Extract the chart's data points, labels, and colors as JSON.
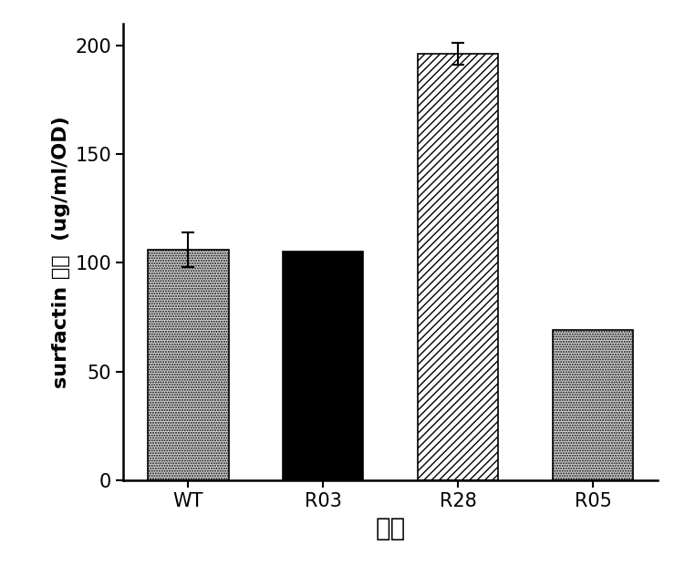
{
  "categories": [
    "WT",
    "R03",
    "R28",
    "R05"
  ],
  "values": [
    106.0,
    105.0,
    196.0,
    69.0
  ],
  "errors": [
    8.0,
    0.0,
    5.0,
    0.0
  ],
  "bar_colors": [
    "#d8d8d8",
    "#000000",
    "#ffffff",
    "#d8d8d8"
  ],
  "hatches": [
    "......",
    "",
    "////",
    "......"
  ],
  "edgecolors": [
    "#000000",
    "#000000",
    "#000000",
    "#000000"
  ],
  "ylabel": "surfactin 产量  (ug/ml/OD)",
  "xlabel": "菌株",
  "ylim": [
    0,
    210
  ],
  "yticks": [
    0,
    50,
    100,
    150,
    200
  ],
  "bar_width": 0.6,
  "label_fontsize": 16,
  "tick_fontsize": 15,
  "xlabel_fontsize": 20,
  "background_color": "#ffffff"
}
